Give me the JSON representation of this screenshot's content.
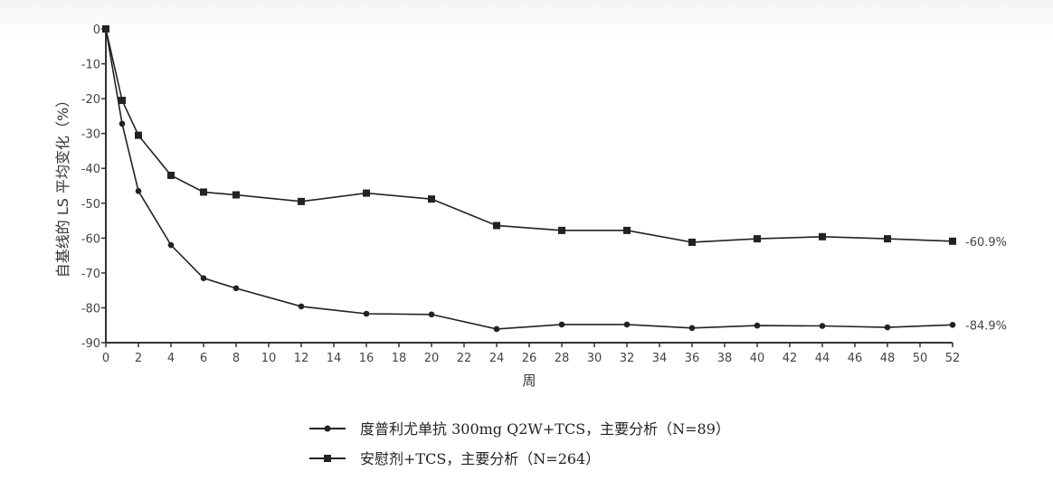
{
  "chart_data": {
    "type": "line",
    "xlabel": "周",
    "ylabel": "自基线的 LS 平均变化（%）",
    "xlim": [
      0,
      52
    ],
    "ylim": [
      -90,
      0
    ],
    "x_ticks": [
      "0",
      "2",
      "4",
      "6",
      "8",
      "10",
      "12",
      "14",
      "16",
      "18",
      "20",
      "22",
      "24",
      "26",
      "28",
      "30",
      "32",
      "34",
      "36",
      "38",
      "40",
      "42",
      "44",
      "46",
      "48",
      "50",
      "52"
    ],
    "y_ticks": [
      "0",
      "-10",
      "-20",
      "-30",
      "-40",
      "-50",
      "-60",
      "-70",
      "-80",
      "-90"
    ],
    "series": [
      {
        "name": "度普利尤单抗  300mg Q2W+TCS，主要分析（N=89）",
        "marker": "circle",
        "color": "#222222",
        "x": [
          0,
          1,
          2,
          4,
          6,
          8,
          12,
          16,
          20,
          24,
          28,
          32,
          36,
          40,
          44,
          48,
          52
        ],
        "y": [
          0,
          -27.2,
          -46.5,
          -62,
          -71.5,
          -74.4,
          -79.6,
          -81.7,
          -81.9,
          -86.1,
          -84.8,
          -84.8,
          -85.8,
          -85.1,
          -85.2,
          -85.6,
          -84.9
        ],
        "end_label": "-84.9%"
      },
      {
        "name": "安慰剂+TCS，主要分析（N=264）",
        "marker": "square",
        "color": "#222222",
        "x": [
          0,
          1,
          2,
          4,
          6,
          8,
          12,
          16,
          20,
          24,
          28,
          32,
          36,
          40,
          44,
          48,
          52
        ],
        "y": [
          0,
          -20.5,
          -30.5,
          -42,
          -46.8,
          -47.6,
          -49.5,
          -47.1,
          -48.8,
          -56.4,
          -57.8,
          -57.8,
          -61.2,
          -60.2,
          -59.6,
          -60.2,
          -60.9
        ],
        "end_label": "-60.9%"
      }
    ],
    "grid": false,
    "legend_position": "bottom-center"
  }
}
